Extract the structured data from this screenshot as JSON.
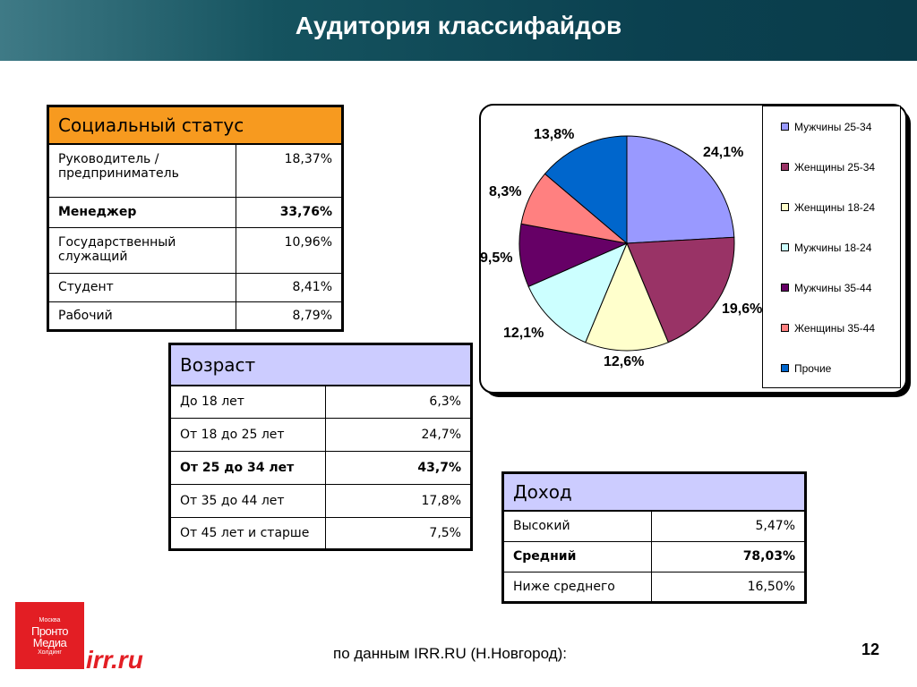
{
  "slide": {
    "title": "Аудитория классифайдов",
    "source": "по данным IRR.RU (Н.Новгород):",
    "page_number": "12"
  },
  "social_status": {
    "header": "Социальный статус",
    "rows": [
      {
        "label": "Руководитель / предприниматель",
        "value": "18,37%",
        "bold": false
      },
      {
        "label": "Менеджер",
        "value": "33,76%",
        "bold": true
      },
      {
        "label": "Государственный служащий",
        "value": "10,96%",
        "bold": false
      },
      {
        "label": "Студент",
        "value": "8,41%",
        "bold": false
      },
      {
        "label": "Рабочий",
        "value": "8,79%",
        "bold": false
      }
    ]
  },
  "age": {
    "header": "Возраст",
    "rows": [
      {
        "label": "До 18 лет",
        "value": "6,3%",
        "bold": false
      },
      {
        "label": "От 18 до 25 лет",
        "value": "24,7%",
        "bold": false
      },
      {
        "label": "От 25 до 34 лет",
        "value": "43,7%",
        "bold": true
      },
      {
        "label": "От 35 до 44 лет",
        "value": "17,8%",
        "bold": false
      },
      {
        "label": "От 45 лет и старше",
        "value": "7,5%",
        "bold": false
      }
    ]
  },
  "income": {
    "header": "Доход",
    "rows": [
      {
        "label": "Высокий",
        "value": "5,47%",
        "bold": false
      },
      {
        "label": "Средний",
        "value": "78,03%",
        "bold": true
      },
      {
        "label": "Ниже среднего",
        "value": "16,50%",
        "bold": false
      }
    ]
  },
  "chart_data": {
    "type": "pie",
    "legend_position": "right",
    "slices": [
      {
        "name": "Мужчины 25-34",
        "value": 24.1,
        "label": "24,1%",
        "color": "#9999ff"
      },
      {
        "name": "Женщины 25-34",
        "value": 19.6,
        "label": "19,6%",
        "color": "#993366"
      },
      {
        "name": "Женщины 18-24",
        "value": 12.6,
        "label": "12,6%",
        "color": "#ffffcc"
      },
      {
        "name": "Мужчины 18-24",
        "value": 12.1,
        "label": "12,1%",
        "color": "#ccffff"
      },
      {
        "name": "Мужчины 35-44",
        "value": 9.5,
        "label": "9,5%",
        "color": "#660066"
      },
      {
        "name": "Женщины 35-44",
        "value": 8.3,
        "label": "8,3%",
        "color": "#ff8080"
      },
      {
        "name": "Прочие",
        "value": 13.8,
        "label": "13,8%",
        "color": "#0066cc"
      }
    ]
  },
  "logo": {
    "lines": [
      "Москва",
      "Пронто",
      "Медиа",
      "Холдинг"
    ],
    "url": "irr.ru",
    "color": "#e31e24"
  }
}
